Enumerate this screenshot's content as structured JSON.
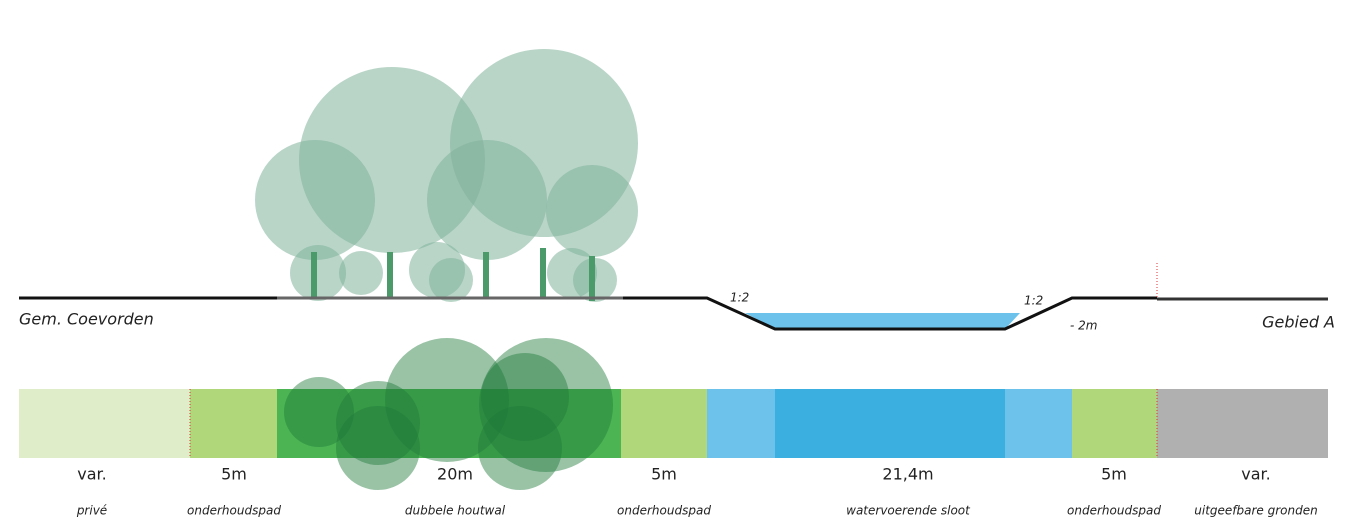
{
  "labels": {
    "left": "Gem. Coevorden",
    "right": "Gebied A",
    "slope_left": "1:2",
    "slope_right": "1:2",
    "depth": "- 2m"
  },
  "zones": [
    {
      "width": "var.",
      "name": "privé"
    },
    {
      "width": "5m",
      "name": "onderhoudspad"
    },
    {
      "width": "20m",
      "name": "dubbele houtwal"
    },
    {
      "width": "5m",
      "name": "onderhoudspad"
    },
    {
      "width": "21,4m",
      "name": "watervoerende sloot"
    },
    {
      "width": "5m",
      "name": "onderhoudspad"
    },
    {
      "width": "var.",
      "name": "uitgeefbare gronden"
    }
  ]
}
